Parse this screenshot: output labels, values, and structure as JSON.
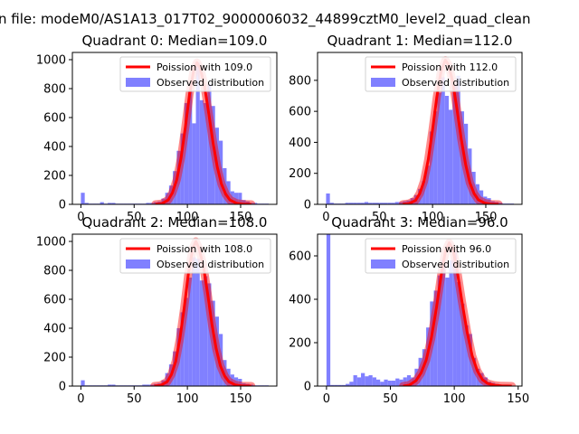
{
  "figure": {
    "suptitle": "n file: modeM0/AS1A13_017T02_9000006032_44899cztM0_level2_quad_clean"
  },
  "colors": {
    "poisson": "#ff0000",
    "observed": "#8080ff"
  },
  "chart_data": [
    {
      "type": "bar",
      "title": "Quadrant 0: Median=109.0",
      "xlim": [
        -8,
        184
      ],
      "ylim": [
        0,
        1050
      ],
      "xticks": [
        0,
        50,
        100,
        150
      ],
      "yticks": [
        0,
        200,
        400,
        600,
        800,
        1000
      ],
      "bin_width": 3.6,
      "legend": {
        "position": "top-right",
        "entries": [
          "Poission with 109.0",
          "Observed distribution"
        ]
      },
      "observed": {
        "x": [
          0,
          3.6,
          7.2,
          10.8,
          14.4,
          18,
          21.6,
          25.2,
          28.8,
          32.4,
          36,
          39.6,
          43.2,
          46.8,
          50.4,
          54,
          57.6,
          61.2,
          64.8,
          68.4,
          72,
          75.6,
          79.2,
          82.8,
          86.4,
          90,
          93.6,
          97.2,
          100.8,
          104.4,
          108,
          111.6,
          115.2,
          118.8,
          122.4,
          126,
          129.6,
          133.2,
          136.8,
          140.4,
          144,
          147.6,
          151.2,
          154.8,
          158.4,
          162,
          165.6,
          169.2,
          172.8
        ],
        "values": [
          80,
          10,
          5,
          5,
          5,
          15,
          5,
          10,
          10,
          5,
          5,
          5,
          5,
          5,
          5,
          5,
          5,
          10,
          10,
          15,
          20,
          40,
          80,
          130,
          230,
          370,
          490,
          700,
          790,
          560,
          980,
          720,
          700,
          830,
          680,
          530,
          440,
          250,
          160,
          90,
          80,
          80,
          30,
          20,
          10,
          10,
          5,
          5,
          5
        ]
      },
      "poisson": {
        "x": [
          70,
          76,
          82,
          86,
          90,
          94,
          98,
          102,
          106,
          109,
          112,
          116,
          120,
          124,
          128,
          132,
          136,
          140,
          146,
          152,
          160
        ],
        "values": [
          0,
          5,
          30,
          80,
          170,
          320,
          530,
          760,
          930,
          980,
          940,
          820,
          630,
          430,
          260,
          140,
          70,
          30,
          8,
          2,
          0
        ]
      }
    },
    {
      "type": "bar",
      "title": "Quadrant 1: Median=112.0",
      "xlim": [
        -8,
        184
      ],
      "ylim": [
        0,
        980
      ],
      "xticks": [
        0,
        50,
        100,
        150
      ],
      "yticks": [
        0,
        200,
        400,
        600,
        800
      ],
      "bin_width": 3.6,
      "legend": {
        "position": "top-right",
        "entries": [
          "Poission with 112.0",
          "Observed distribution"
        ]
      },
      "observed": {
        "x": [
          0,
          3.6,
          7.2,
          10.8,
          14.4,
          18,
          21.6,
          25.2,
          28.8,
          32.4,
          36,
          39.6,
          43.2,
          46.8,
          50.4,
          54,
          57.6,
          61.2,
          64.8,
          68.4,
          72,
          75.6,
          79.2,
          82.8,
          86.4,
          90,
          93.6,
          97.2,
          100.8,
          104.4,
          108,
          111.6,
          115.2,
          118.8,
          122.4,
          126,
          129.6,
          133.2,
          136.8,
          140.4,
          144,
          147.6,
          151.2,
          154.8,
          158.4,
          162,
          165.6,
          169.2,
          172.8
        ],
        "values": [
          70,
          10,
          5,
          5,
          5,
          10,
          10,
          10,
          10,
          10,
          15,
          10,
          10,
          10,
          10,
          10,
          10,
          10,
          15,
          15,
          20,
          25,
          40,
          60,
          100,
          150,
          250,
          470,
          600,
          720,
          820,
          700,
          610,
          770,
          830,
          600,
          520,
          360,
          210,
          130,
          90,
          50,
          40,
          20,
          15,
          10,
          5,
          5,
          5
        ]
      },
      "poisson": {
        "x": [
          72,
          78,
          84,
          88,
          92,
          96,
          100,
          104,
          108,
          112,
          115,
          119,
          123,
          127,
          131,
          135,
          139,
          143,
          149,
          155,
          162
        ],
        "values": [
          0,
          5,
          25,
          70,
          150,
          290,
          480,
          690,
          860,
          930,
          900,
          790,
          610,
          420,
          260,
          140,
          70,
          30,
          8,
          2,
          0
        ]
      }
    },
    {
      "type": "bar",
      "title": "Quadrant 2: Median=108.0",
      "xlim": [
        -8,
        184
      ],
      "ylim": [
        0,
        1050
      ],
      "xticks": [
        0,
        50,
        100,
        150
      ],
      "yticks": [
        0,
        200,
        400,
        600,
        800,
        1000
      ],
      "bin_width": 3.6,
      "legend": {
        "position": "top-right",
        "entries": [
          "Poission with 108.0",
          "Observed distribution"
        ]
      },
      "observed": {
        "x": [
          0,
          3.6,
          7.2,
          10.8,
          14.4,
          18,
          21.6,
          25.2,
          28.8,
          32.4,
          36,
          39.6,
          43.2,
          46.8,
          50.4,
          54,
          57.6,
          61.2,
          64.8,
          68.4,
          72,
          75.6,
          79.2,
          82.8,
          86.4,
          90,
          93.6,
          97.2,
          100.8,
          104.4,
          108,
          111.6,
          115.2,
          118.8,
          122.4,
          126,
          129.6,
          133.2,
          136.8,
          140.4,
          144,
          147.6,
          151.2,
          154.8,
          158.4,
          162,
          165.6,
          169.2,
          172.8
        ],
        "values": [
          40,
          5,
          5,
          5,
          5,
          5,
          5,
          10,
          10,
          5,
          5,
          5,
          5,
          5,
          5,
          5,
          10,
          10,
          10,
          15,
          20,
          40,
          90,
          150,
          240,
          400,
          510,
          610,
          750,
          890,
          880,
          730,
          760,
          710,
          590,
          480,
          360,
          180,
          120,
          80,
          60,
          50,
          20,
          15,
          10,
          5,
          5,
          5,
          5
        ]
      },
      "poisson": {
        "x": [
          69,
          75,
          81,
          85,
          89,
          93,
          97,
          101,
          105,
          108,
          111,
          115,
          119,
          123,
          127,
          131,
          135,
          139,
          145,
          151,
          160
        ],
        "values": [
          0,
          5,
          30,
          80,
          170,
          330,
          540,
          780,
          950,
          1000,
          950,
          830,
          640,
          430,
          260,
          140,
          70,
          30,
          8,
          2,
          0
        ]
      }
    },
    {
      "type": "bar",
      "title": "Quadrant 3: Median=96.0",
      "xlim": [
        -7,
        153
      ],
      "ylim": [
        0,
        700
      ],
      "xticks": [
        0,
        50,
        100,
        150
      ],
      "yticks": [
        0,
        200,
        400,
        600
      ],
      "bin_width": 3,
      "legend": {
        "position": "top-right",
        "entries": [
          "Poission with 96.0",
          "Observed distribution"
        ]
      },
      "observed": {
        "x": [
          0,
          3,
          6,
          9,
          12,
          15,
          18,
          21,
          24,
          27,
          30,
          33,
          36,
          39,
          42,
          45,
          48,
          51,
          54,
          57,
          60,
          63,
          66,
          69,
          72,
          75,
          78,
          81,
          84,
          87,
          90,
          93,
          96,
          99,
          102,
          105,
          108,
          111,
          114,
          117,
          120,
          123,
          126,
          129,
          132,
          135,
          138,
          141
        ],
        "values": [
          700,
          5,
          5,
          5,
          5,
          10,
          20,
          50,
          40,
          60,
          45,
          50,
          40,
          30,
          20,
          30,
          25,
          25,
          35,
          30,
          40,
          50,
          40,
          80,
          130,
          170,
          270,
          390,
          440,
          510,
          580,
          500,
          580,
          620,
          480,
          380,
          280,
          240,
          130,
          80,
          60,
          40,
          20,
          15,
          10,
          5,
          5,
          5
        ]
      },
      "poisson": {
        "x": [
          60,
          65,
          70,
          74,
          78,
          82,
          86,
          90,
          93,
          96,
          99,
          102,
          106,
          110,
          114,
          118,
          122,
          126,
          131,
          137,
          145
        ],
        "values": [
          0,
          5,
          25,
          60,
          120,
          220,
          360,
          520,
          620,
          660,
          630,
          540,
          390,
          250,
          140,
          70,
          30,
          12,
          4,
          1,
          0
        ]
      }
    }
  ]
}
